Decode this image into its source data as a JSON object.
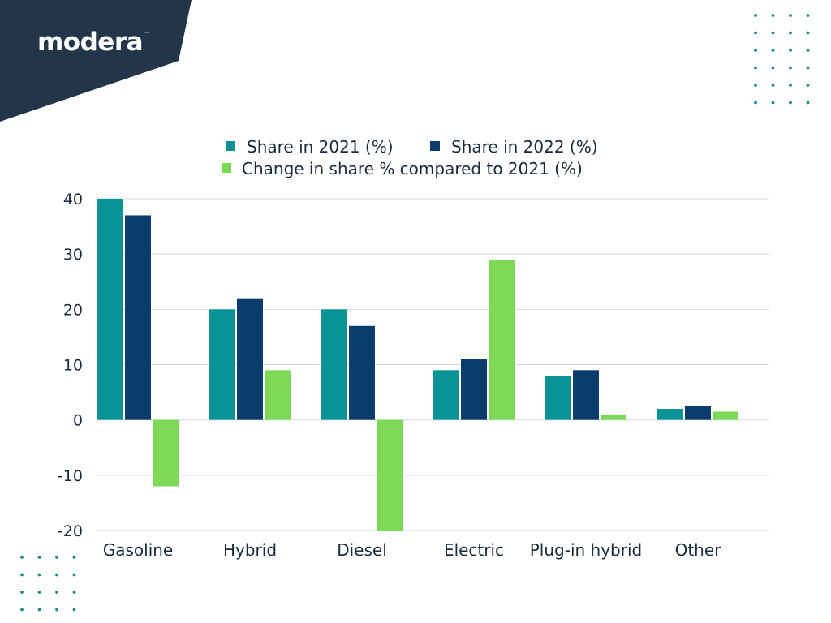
{
  "brand": {
    "name": "modera",
    "mark": "™"
  },
  "colors": {
    "header_bg": "#233649",
    "dots": "#1f8a8a",
    "grid": "#d9d9d9",
    "text": "#1a2b3c"
  },
  "chart_data": {
    "type": "bar",
    "categories": [
      "Gasoline",
      "Hybrid",
      "Diesel",
      "Electric",
      "Plug-in hybrid",
      "Other"
    ],
    "series": [
      {
        "name": "Share in 2021 (%)",
        "color": "#0a9396",
        "values": [
          40,
          20,
          20,
          9,
          8,
          2
        ]
      },
      {
        "name": "Share in 2022 (%)",
        "color": "#0a3d6b",
        "values": [
          37,
          22,
          17,
          11,
          9,
          2.5
        ]
      },
      {
        "name": "Change in share % compared to 2021 (%)",
        "color": "#7ed957",
        "values": [
          -12,
          9,
          -20,
          29,
          1,
          1.5
        ]
      }
    ],
    "ylim": [
      -20,
      40
    ],
    "yticks": [
      40,
      30,
      20,
      10,
      0,
      -10,
      -20
    ],
    "grid": true,
    "legend_position": "top"
  }
}
